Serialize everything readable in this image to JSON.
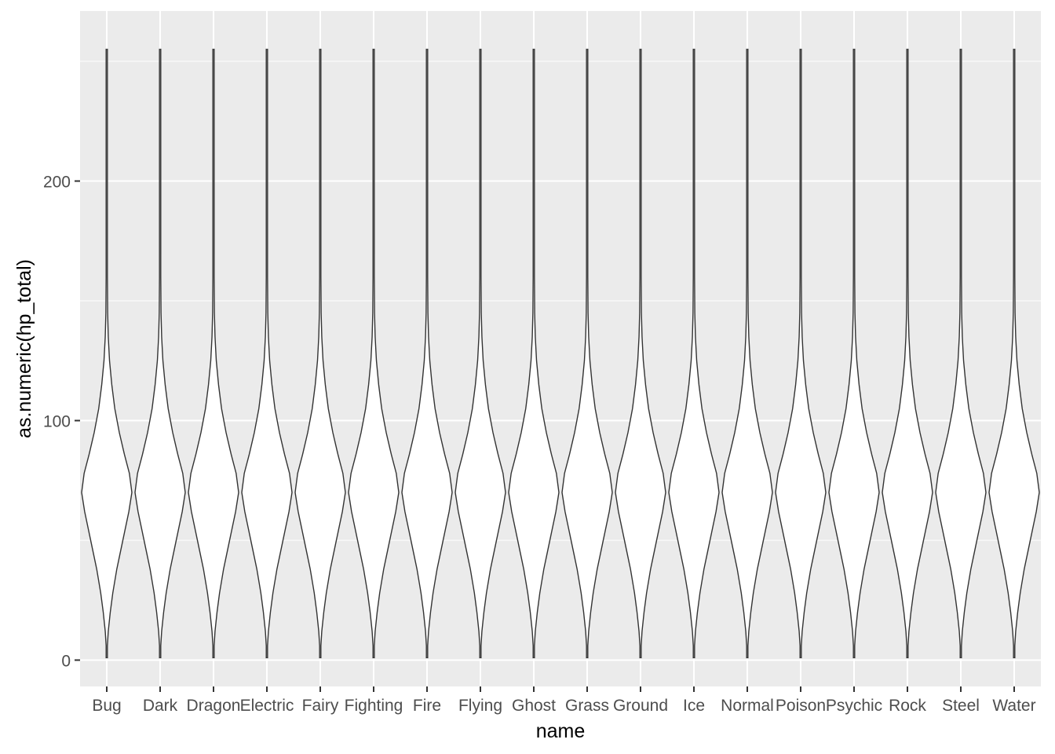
{
  "chart_data": {
    "type": "violin",
    "title": "",
    "xlabel": "name",
    "ylabel": "as.numeric(hp_total)",
    "ylim": [
      -11,
      271
    ],
    "y_ticks": [
      0,
      100,
      200
    ],
    "y_tick_labels": [
      "0",
      "100",
      "200"
    ],
    "grid": true,
    "categories": [
      "Bug",
      "Dark",
      "Dragon",
      "Electric",
      "Fairy",
      "Fighting",
      "Fire",
      "Flying",
      "Ghost",
      "Grass",
      "Ground",
      "Ice",
      "Normal",
      "Poison",
      "Psychic",
      "Rock",
      "Steel",
      "Water"
    ],
    "series": [
      {
        "category": "Bug",
        "min": 1,
        "max": 255
      },
      {
        "category": "Dark",
        "min": 1,
        "max": 255
      },
      {
        "category": "Dragon",
        "min": 1,
        "max": 255
      },
      {
        "category": "Electric",
        "min": 1,
        "max": 255
      },
      {
        "category": "Fairy",
        "min": 1,
        "max": 255
      },
      {
        "category": "Fighting",
        "min": 1,
        "max": 255
      },
      {
        "category": "Fire",
        "min": 1,
        "max": 255
      },
      {
        "category": "Flying",
        "min": 1,
        "max": 255
      },
      {
        "category": "Ghost",
        "min": 1,
        "max": 255
      },
      {
        "category": "Grass",
        "min": 1,
        "max": 255
      },
      {
        "category": "Ground",
        "min": 1,
        "max": 255
      },
      {
        "category": "Ice",
        "min": 1,
        "max": 255
      },
      {
        "category": "Normal",
        "min": 1,
        "max": 255
      },
      {
        "category": "Poison",
        "min": 1,
        "max": 255
      },
      {
        "category": "Psychic",
        "min": 1,
        "max": 255
      },
      {
        "category": "Rock",
        "min": 1,
        "max": 255
      },
      {
        "category": "Steel",
        "min": 1,
        "max": 255
      },
      {
        "category": "Water",
        "min": 1,
        "max": 255
      }
    ],
    "colors": {
      "panel": "#ebebeb",
      "grid_major": "#ffffff",
      "violin_fill": "#ffffff",
      "violin_stroke": "#333333",
      "tick": "#333333",
      "tick_label": "#4d4d4d"
    }
  }
}
